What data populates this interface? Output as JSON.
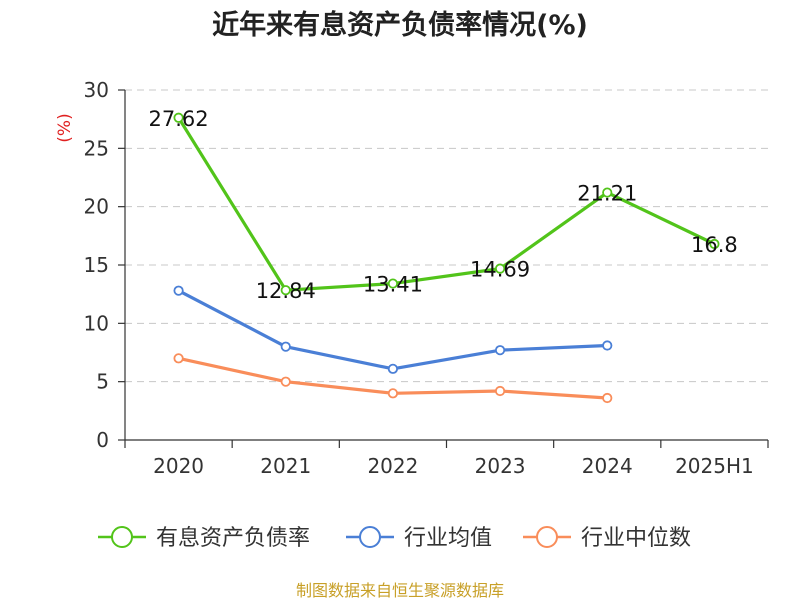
{
  "chart_data": {
    "type": "line",
    "title": "近年来有息资产负债率情况(%)",
    "ylabel": "(%)",
    "ylim": [
      0,
      30
    ],
    "yticks": [
      0,
      5,
      10,
      15,
      20,
      25,
      30
    ],
    "categories": [
      "2020",
      "2021",
      "2022",
      "2023",
      "2024",
      "2025H1"
    ],
    "grid": true,
    "legend_position": "bottom",
    "series": [
      {
        "name": "有息资产负债率",
        "color": "#52c41a",
        "values": [
          27.62,
          12.84,
          13.41,
          14.69,
          21.21,
          16.8
        ],
        "labels": [
          "27.62",
          "12.84",
          "13.41",
          "14.69",
          "21.21",
          "16.8"
        ]
      },
      {
        "name": "行业均值",
        "color": "#4a7fd6",
        "values": [
          12.8,
          8.0,
          6.1,
          7.7,
          8.1,
          null
        ]
      },
      {
        "name": "行业中位数",
        "color": "#f98d5a",
        "values": [
          7.0,
          5.0,
          4.0,
          4.2,
          3.6,
          null
        ]
      }
    ],
    "source": "制图数据来自恒生聚源数据库"
  }
}
